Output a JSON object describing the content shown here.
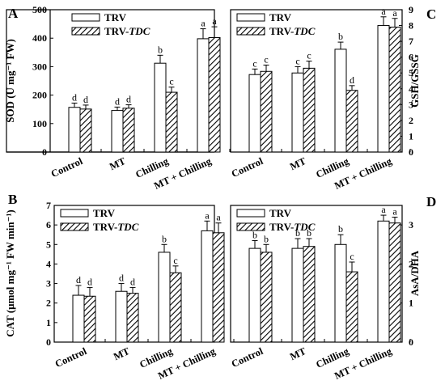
{
  "chart_data": [
    {
      "panel": "A",
      "type": "bar",
      "categories": [
        "Control",
        "MT",
        "Chilling",
        "MT + Chilling"
      ],
      "ylabel": "SOD (U mg⁻¹ FW)",
      "ylim": [
        0,
        500
      ],
      "yticks": [
        0,
        100,
        200,
        300,
        400,
        500
      ],
      "y_axis_side": "left",
      "legend": "top-left",
      "series": [
        {
          "name": "TRV",
          "values": [
            157,
            146,
            312,
            398
          ],
          "errors": [
            15,
            12,
            28,
            35
          ],
          "letters": [
            "d",
            "d",
            "b",
            "a"
          ]
        },
        {
          "name": "TRV-TDC",
          "values": [
            151,
            154,
            210,
            402
          ],
          "errors": [
            14,
            12,
            18,
            38
          ],
          "letters": [
            "d",
            "d",
            "c",
            "a"
          ]
        }
      ]
    },
    {
      "panel": "C",
      "type": "bar",
      "categories": [
        "Control",
        "MT",
        "Chilling",
        "MT + Chilling"
      ],
      "ylabel": "GSH/GSSG",
      "ylim": [
        0,
        9
      ],
      "yticks": [
        0,
        1,
        2,
        3,
        4,
        5,
        6,
        7,
        8,
        9
      ],
      "y_axis_side": "right",
      "legend": "top-left",
      "series": [
        {
          "name": "TRV",
          "values": [
            4.9,
            5.0,
            6.5,
            8.0
          ],
          "errors": [
            0.35,
            0.4,
            0.45,
            0.55
          ],
          "letters": [
            "c",
            "c",
            "b",
            "a"
          ]
        },
        {
          "name": "TRV-TDC",
          "values": [
            5.1,
            5.3,
            3.9,
            7.9
          ],
          "errors": [
            0.4,
            0.45,
            0.3,
            0.55
          ],
          "letters": [
            "c",
            "c",
            "d",
            "a"
          ]
        }
      ]
    },
    {
      "panel": "B",
      "type": "bar",
      "categories": [
        "Control",
        "MT",
        "Chilling",
        "MT + Chilling"
      ],
      "ylabel": "CAT (μmol mg⁻¹ FW min⁻¹)",
      "ylim": [
        0,
        7
      ],
      "yticks": [
        0,
        1,
        2,
        3,
        4,
        5,
        6,
        7
      ],
      "y_axis_side": "left",
      "legend": "top-left",
      "series": [
        {
          "name": "TRV",
          "values": [
            2.4,
            2.6,
            4.6,
            5.7
          ],
          "errors": [
            0.5,
            0.4,
            0.4,
            0.5
          ],
          "letters": [
            "d",
            "d",
            "b",
            "a"
          ]
        },
        {
          "name": "TRV-TDC",
          "values": [
            2.35,
            2.5,
            3.55,
            5.6
          ],
          "errors": [
            0.45,
            0.3,
            0.35,
            0.5
          ],
          "letters": [
            "d",
            "d",
            "c",
            "a"
          ]
        }
      ]
    },
    {
      "panel": "D",
      "type": "bar",
      "categories": [
        "Control",
        "MT",
        "Chilling",
        "MT + Chilling"
      ],
      "ylabel": "AsA/DHA",
      "ylim": [
        0,
        3.5
      ],
      "yticks": [
        0,
        1,
        2,
        3
      ],
      "y_axis_side": "right",
      "legend": "top-left",
      "series": [
        {
          "name": "TRV",
          "values": [
            2.4,
            2.4,
            2.5,
            3.1
          ],
          "errors": [
            0.2,
            0.25,
            0.25,
            0.15
          ],
          "letters": [
            "b",
            "b",
            "b",
            "a"
          ]
        },
        {
          "name": "TRV-TDC",
          "values": [
            2.3,
            2.45,
            1.8,
            3.05
          ],
          "errors": [
            0.2,
            0.2,
            0.25,
            0.15
          ],
          "letters": [
            "b",
            "b",
            "c",
            "a"
          ]
        }
      ]
    }
  ],
  "legend_labels": {
    "trv": "TRV",
    "trv_tdc_prefix": "TRV-",
    "trv_tdc_italic": "TDC"
  },
  "colors": {
    "axis": "#000000",
    "bar_fill": "#ffffff",
    "hatch": "#000000"
  }
}
